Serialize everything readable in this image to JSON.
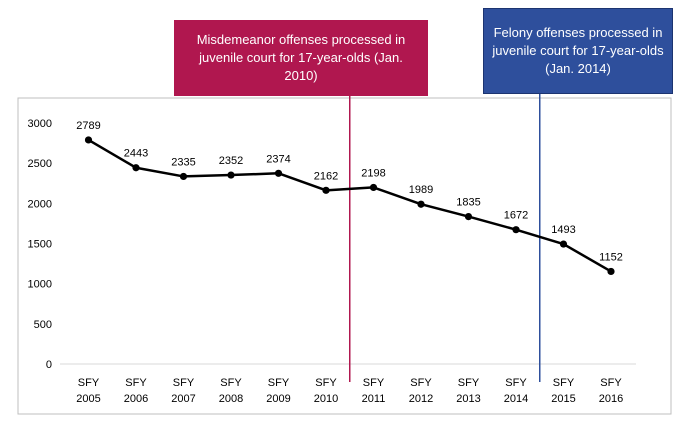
{
  "chart_data": {
    "type": "line",
    "categories": [
      [
        "SFY",
        "2005"
      ],
      [
        "SFY",
        "2006"
      ],
      [
        "SFY",
        "2007"
      ],
      [
        "SFY",
        "2008"
      ],
      [
        "SFY",
        "2009"
      ],
      [
        "SFY",
        "2010"
      ],
      [
        "SFY",
        "2011"
      ],
      [
        "SFY",
        "2012"
      ],
      [
        "SFY",
        "2013"
      ],
      [
        "SFY",
        "2014"
      ],
      [
        "SFY",
        "2015"
      ],
      [
        "SFY",
        "2016"
      ]
    ],
    "series": [
      {
        "values": [
          2789,
          2443,
          2335,
          2352,
          2374,
          2162,
          2198,
          1989,
          1835,
          1672,
          1493,
          1152
        ],
        "color": "#000000"
      }
    ],
    "ylim": [
      0,
      3000
    ],
    "yticks": [
      0,
      500,
      1000,
      1500,
      2000,
      2500,
      3000
    ],
    "grid": false,
    "data_labels": true,
    "annotations": [
      {
        "text": "Misdemeanor offenses processed in juvenile court for 17-year-olds (Jan. 2010)",
        "after_index": 5,
        "color": "#b0174f"
      },
      {
        "text": "Felony offenses processed in juvenile court for 17-year-olds (Jan. 2014)",
        "after_index": 9,
        "color": "#2e4f9c"
      }
    ]
  }
}
